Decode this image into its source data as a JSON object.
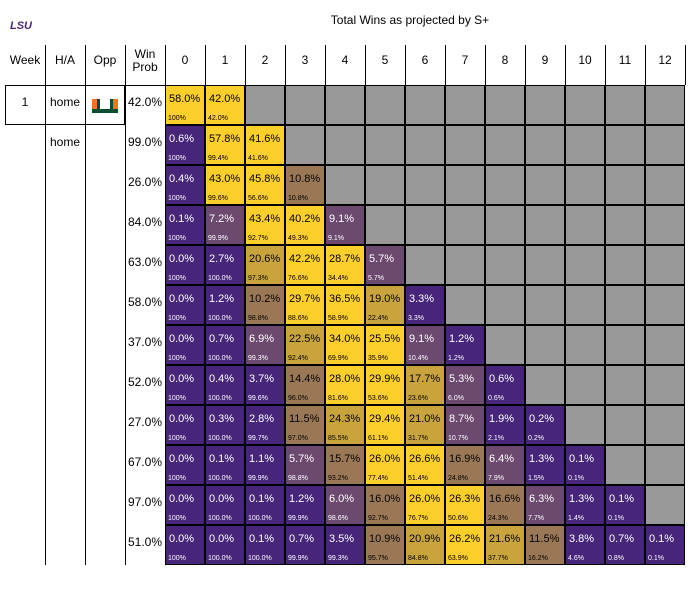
{
  "brand_logo_text": "LSU",
  "title": "Total Wins as projected by S+",
  "headers": {
    "week": "Week",
    "ha": "H/A",
    "opp": "Opp",
    "winprob": [
      "Win",
      "Prob"
    ],
    "wins": [
      "0",
      "1",
      "2",
      "3",
      "4",
      "5",
      "6",
      "7",
      "8",
      "9",
      "10",
      "11",
      "12"
    ]
  },
  "colors": {
    "purple": "#46257a",
    "gold": "#fdcf2a",
    "gray": "#999999",
    "mid1": "#6c4a70",
    "mid2": "#9b7855",
    "mid3": "#c9a43d"
  },
  "chart_data": {
    "type": "table",
    "title": "Total Wins as projected by S+",
    "columns": [
      "0",
      "1",
      "2",
      "3",
      "4",
      "5",
      "6",
      "7",
      "8",
      "9",
      "10",
      "11",
      "12"
    ],
    "rows": [
      {
        "week": "1",
        "ha": "home",
        "opp_logo": "miami-hurricanes-logo",
        "win_prob": "42.0%",
        "values": [
          "58.0%",
          "42.0%"
        ],
        "cum": [
          "100%",
          "42.0%"
        ]
      },
      {
        "week": "",
        "ha": "home",
        "opp_logo": "",
        "win_prob": "99.0%",
        "values": [
          "0.6%",
          "57.8%",
          "41.6%"
        ],
        "cum": [
          "100%",
          "99.4%",
          "41.6%"
        ]
      },
      {
        "week": "",
        "ha": "",
        "opp_logo": "",
        "win_prob": "26.0%",
        "values": [
          "0.4%",
          "43.0%",
          "45.8%",
          "10.8%"
        ],
        "cum": [
          "100%",
          "99.6%",
          "56.6%",
          "10.8%"
        ]
      },
      {
        "week": "",
        "ha": "",
        "opp_logo": "",
        "win_prob": "84.0%",
        "values": [
          "0.1%",
          "7.2%",
          "43.4%",
          "40.2%",
          "9.1%"
        ],
        "cum": [
          "100%",
          "99.9%",
          "92.7%",
          "49.3%",
          "9.1%"
        ]
      },
      {
        "week": "",
        "ha": "",
        "opp_logo": "",
        "win_prob": "63.0%",
        "values": [
          "0.0%",
          "2.7%",
          "20.6%",
          "42.2%",
          "28.7%",
          "5.7%"
        ],
        "cum": [
          "100%",
          "100.0%",
          "97.3%",
          "76.6%",
          "34.4%",
          "5.7%"
        ]
      },
      {
        "week": "",
        "ha": "",
        "opp_logo": "",
        "win_prob": "58.0%",
        "values": [
          "0.0%",
          "1.2%",
          "10.2%",
          "29.7%",
          "36.5%",
          "19.0%",
          "3.3%"
        ],
        "cum": [
          "100%",
          "100.0%",
          "98.8%",
          "88.6%",
          "58.9%",
          "22.4%",
          "3.3%"
        ]
      },
      {
        "week": "",
        "ha": "",
        "opp_logo": "",
        "win_prob": "37.0%",
        "values": [
          "0.0%",
          "0.7%",
          "6.9%",
          "22.5%",
          "34.0%",
          "25.5%",
          "9.1%",
          "1.2%"
        ],
        "cum": [
          "100%",
          "100.0%",
          "99.3%",
          "92.4%",
          "69.9%",
          "35.9%",
          "10.4%",
          "1.2%"
        ]
      },
      {
        "week": "",
        "ha": "",
        "opp_logo": "",
        "win_prob": "52.0%",
        "values": [
          "0.0%",
          "0.4%",
          "3.7%",
          "14.4%",
          "28.0%",
          "29.9%",
          "17.7%",
          "5.3%",
          "0.6%"
        ],
        "cum": [
          "100%",
          "100.0%",
          "99.6%",
          "96.0%",
          "81.6%",
          "53.6%",
          "23.6%",
          "6.0%",
          "0.6%"
        ]
      },
      {
        "week": "",
        "ha": "",
        "opp_logo": "",
        "win_prob": "27.0%",
        "values": [
          "0.0%",
          "0.3%",
          "2.8%",
          "11.5%",
          "24.3%",
          "29.4%",
          "21.0%",
          "8.7%",
          "1.9%",
          "0.2%"
        ],
        "cum": [
          "100%",
          "100.0%",
          "99.7%",
          "97.0%",
          "85.5%",
          "61.1%",
          "31.7%",
          "10.7%",
          "2.1%",
          "0.2%"
        ]
      },
      {
        "week": "",
        "ha": "",
        "opp_logo": "",
        "win_prob": "67.0%",
        "values": [
          "0.0%",
          "0.1%",
          "1.1%",
          "5.7%",
          "15.7%",
          "26.0%",
          "26.6%",
          "16.9%",
          "6.4%",
          "1.3%",
          "0.1%"
        ],
        "cum": [
          "100%",
          "100.0%",
          "99.9%",
          "98.8%",
          "93.2%",
          "77.4%",
          "51.4%",
          "24.8%",
          "7.9%",
          "1.5%",
          "0.1%"
        ]
      },
      {
        "week": "",
        "ha": "",
        "opp_logo": "",
        "win_prob": "97.0%",
        "values": [
          "0.0%",
          "0.0%",
          "0.1%",
          "1.2%",
          "6.0%",
          "16.0%",
          "26.0%",
          "26.3%",
          "16.6%",
          "6.3%",
          "1.3%",
          "0.1%"
        ],
        "cum": [
          "100%",
          "100.0%",
          "100.0%",
          "99.9%",
          "98.6%",
          "92.7%",
          "76.7%",
          "50.6%",
          "24.3%",
          "7.7%",
          "1.4%",
          "0.1%"
        ]
      },
      {
        "week": "",
        "ha": "",
        "opp_logo": "",
        "win_prob": "51.0%",
        "values": [
          "0.0%",
          "0.0%",
          "0.1%",
          "0.7%",
          "3.5%",
          "10.9%",
          "20.9%",
          "26.2%",
          "21.6%",
          "11.5%",
          "3.8%",
          "0.7%",
          "0.1%"
        ],
        "cum": [
          "100%",
          "100.0%",
          "100.0%",
          "99.9%",
          "99.3%",
          "95.7%",
          "84.8%",
          "63.9%",
          "37.7%",
          "16.2%",
          "4.6%",
          "0.8%",
          "0.1%"
        ]
      }
    ]
  }
}
